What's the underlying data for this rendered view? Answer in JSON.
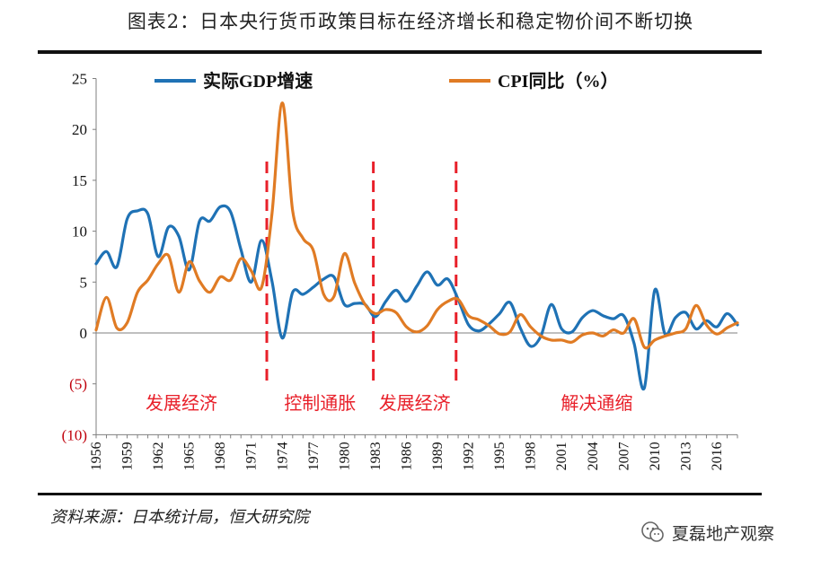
{
  "page": {
    "title": "图表2：日本央行货币政策目标在经济增长和稳定物价间不断切换",
    "source": "资料来源：日本统计局，恒大研究院",
    "watermark": "夏磊地产观察",
    "watermark_icon": "wechat-icon"
  },
  "colors": {
    "gdp": "#1f72b5",
    "cpi": "#e07b24",
    "divider": "#e8202a",
    "period_text": "#e8202a",
    "axis": "#7f7f7f",
    "negative_tick": "#c0000b"
  },
  "chart_data": {
    "type": "line",
    "title": "",
    "xlabel": "",
    "ylabel": "",
    "xlim": [
      1956,
      2018
    ],
    "ylim": [
      -10,
      25
    ],
    "yticks": [
      25,
      20,
      15,
      10,
      5,
      0,
      -5,
      -10
    ],
    "ytick_labels": [
      "25",
      "20",
      "15",
      "10",
      "5",
      "0",
      "(5)",
      "(10)"
    ],
    "xtick_labels": [
      "1956",
      "1959",
      "1962",
      "1965",
      "1968",
      "1971",
      "1974",
      "1977",
      "1980",
      "1983",
      "1986",
      "1989",
      "1992",
      "1995",
      "1998",
      "2001",
      "2004",
      "2007",
      "2010",
      "2013",
      "2016"
    ],
    "legend": {
      "position": "top",
      "entries": [
        "实际GDP增速",
        "CPI同比（%）"
      ]
    },
    "x": [
      1956,
      1957,
      1958,
      1959,
      1960,
      1961,
      1962,
      1963,
      1964,
      1965,
      1966,
      1967,
      1968,
      1969,
      1970,
      1971,
      1972,
      1973,
      1974,
      1975,
      1976,
      1977,
      1978,
      1979,
      1980,
      1981,
      1982,
      1983,
      1984,
      1985,
      1986,
      1987,
      1988,
      1989,
      1990,
      1991,
      1992,
      1993,
      1994,
      1995,
      1996,
      1997,
      1998,
      1999,
      2000,
      2001,
      2002,
      2003,
      2004,
      2005,
      2006,
      2007,
      2008,
      2009,
      2010,
      2011,
      2012,
      2013,
      2014,
      2015,
      2016,
      2017,
      2018
    ],
    "series": [
      {
        "name": "实际GDP增速",
        "values": [
          6.8,
          8.0,
          6.5,
          11.2,
          12.0,
          11.7,
          7.5,
          10.4,
          9.5,
          6.2,
          11.0,
          11.0,
          12.4,
          11.9,
          8.2,
          5.0,
          9.1,
          5.1,
          -0.5,
          4.0,
          3.8,
          4.5,
          5.3,
          5.5,
          2.8,
          2.9,
          2.8,
          1.6,
          3.1,
          4.2,
          3.1,
          4.6,
          6.0,
          4.7,
          5.3,
          3.3,
          0.8,
          0.2,
          0.9,
          1.9,
          3.0,
          0.5,
          -1.3,
          -0.3,
          2.8,
          0.4,
          0.1,
          1.5,
          2.2,
          1.7,
          1.4,
          1.7,
          -1.0,
          -5.4,
          4.2,
          -0.1,
          1.5,
          2.0,
          0.4,
          1.2,
          0.6,
          1.9,
          0.8
        ]
      },
      {
        "name": "CPI同比（%）",
        "values": [
          0.3,
          3.5,
          0.5,
          1.0,
          4.0,
          5.2,
          6.8,
          7.6,
          4.0,
          7.0,
          5.1,
          4.0,
          5.5,
          5.2,
          7.3,
          6.1,
          4.5,
          11.7,
          22.6,
          12.0,
          9.3,
          8.1,
          3.8,
          3.6,
          7.8,
          4.9,
          2.8,
          1.9,
          2.3,
          2.0,
          0.6,
          0.1,
          0.7,
          2.3,
          3.1,
          3.3,
          1.7,
          1.3,
          0.7,
          -0.1,
          0.1,
          1.8,
          0.6,
          -0.3,
          -0.7,
          -0.7,
          -0.9,
          -0.2,
          0.0,
          -0.3,
          0.3,
          0.0,
          1.4,
          -1.4,
          -0.7,
          -0.3,
          0.0,
          0.4,
          2.7,
          0.8,
          -0.1,
          0.5,
          1.0
        ]
      }
    ],
    "dividers": [
      1972.5,
      1982.8,
      1990.8
    ],
    "periods": [
      {
        "label": "发展经济"
      },
      {
        "label": "控制通胀"
      },
      {
        "label": "发展经济"
      },
      {
        "label": "解决通缩"
      }
    ]
  }
}
